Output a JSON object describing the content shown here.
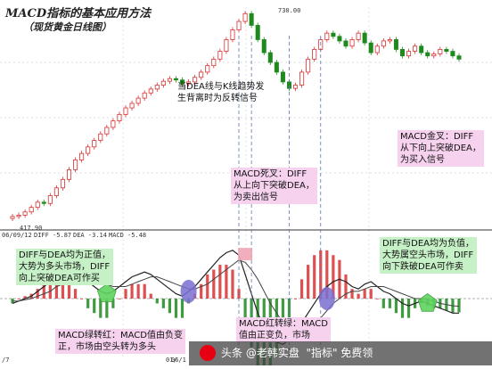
{
  "colors": {
    "up": "#d83030",
    "down": "#1e8a1e",
    "diff_line": "#222222",
    "dea_line": "#444444",
    "callout_green": "#c6f0c6",
    "callout_pink": "#f6d2ee",
    "marker_purple": "#7a6fd0",
    "marker_green": "#5fd35f",
    "marker_pink": "#f0a6b6"
  },
  "header": {
    "title": "MACD指标的基本应用方法",
    "subtitle": "（现货黄金日线图）"
  },
  "annotations": {
    "divergence": "当DEA线与K线趋势发\n生背离时为反转信号",
    "golden_cross": "MACD金叉：DIFF\n从下向上突破DEA，\n为买入信号",
    "death_cross": "MACD死叉：DIFF\n从上向下突破DEA，\n为卖出信号",
    "positive": "DIFF与DEA均为正值，\n大势为多头市场，DIFF\n向上突破DEA可作买",
    "negative": "DIFF与DEA均为负值，\n大势属空头市场，DIFF\n向下跌破DEA可作卖",
    "green_to_red": "MACD绿转红：MACD值由负变\n正，市场由空头转为多头",
    "red_to_green": "MACD红转绿：MACD\n值由正变负，市场"
  },
  "price_labels": {
    "high": "730.00",
    "low": "417.90"
  },
  "indicator_header": {
    "date": "06/09/12",
    "diff": "DIFF -5.87",
    "dea": "DEA -3.14",
    "macd": "MACD -5.48"
  },
  "axis_dates": [
    "/7",
    "01/",
    "06/1"
  ],
  "watermark": {
    "text": "头条 @老韩实盘  \"指标\" 免费领"
  },
  "chart_data": [
    {
      "type": "candlestick",
      "title": "MACD指标的基本应用方法",
      "subtitle": "（现货黄金日线图）",
      "ylim": [
        400,
        740
      ],
      "grid": true,
      "labels": {
        "peak": "730.00",
        "bottom": "417.90"
      },
      "close": [
        418,
        420,
        425,
        432,
        440,
        438,
        450,
        462,
        475,
        490,
        505,
        515,
        525,
        535,
        545,
        555,
        565,
        575,
        585,
        592,
        600,
        608,
        614,
        620,
        626,
        630,
        628,
        622,
        625,
        632,
        640,
        650,
        660,
        672,
        690,
        705,
        718,
        730,
        712,
        690,
        670,
        655,
        640,
        625,
        615,
        620,
        640,
        660,
        675,
        690,
        700,
        695,
        688,
        680,
        690,
        700,
        685,
        670,
        680,
        688,
        690,
        675,
        665,
        672,
        680,
        670,
        665,
        668,
        675,
        672,
        665,
        660
      ]
    },
    {
      "type": "line",
      "title": "MACD",
      "ylim": [
        -24,
        24
      ],
      "grid": false,
      "header_values": {
        "diff": -5.87,
        "dea": -3.14,
        "macd": -5.48
      },
      "series": [
        {
          "name": "DIFF",
          "values": [
            -2,
            -1,
            0,
            1,
            3,
            5,
            7,
            9,
            11,
            12,
            11,
            9,
            7,
            5,
            3,
            2,
            3,
            5,
            7,
            9,
            10,
            11,
            10,
            8,
            6,
            4,
            2,
            1,
            3,
            5,
            8,
            11,
            14,
            17,
            19,
            20,
            18,
            10,
            2,
            -6,
            -12,
            -16,
            -18,
            -19,
            -17,
            -14,
            -10,
            -6,
            -2,
            2,
            5,
            7,
            8,
            7,
            5,
            4,
            6,
            7,
            5,
            3,
            2,
            0,
            -2,
            -3,
            -2,
            -1,
            -2,
            -3,
            -4,
            -5,
            -6,
            -6
          ]
        },
        {
          "name": "DEA",
          "values": [
            -1,
            -1,
            -0.5,
            0,
            1,
            2,
            3,
            5,
            6,
            8,
            9,
            9,
            9,
            8,
            7,
            6,
            5,
            5,
            5,
            6,
            7,
            8,
            9,
            9,
            8,
            7,
            6,
            5,
            4,
            4,
            5,
            6,
            8,
            10,
            12,
            14,
            16,
            15,
            12,
            8,
            3,
            -2,
            -6,
            -10,
            -13,
            -14,
            -14,
            -13,
            -11,
            -8,
            -5,
            -2,
            0,
            2,
            3,
            3,
            4,
            5,
            5,
            5,
            4,
            3,
            2,
            1,
            0,
            0,
            -0.5,
            -1,
            -2,
            -2.5,
            -3,
            -3.14
          ]
        }
      ]
    }
  ]
}
